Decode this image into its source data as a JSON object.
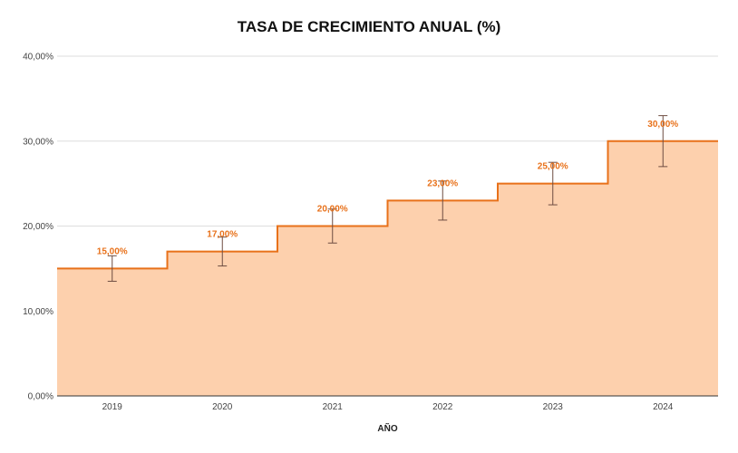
{
  "chart_data": {
    "type": "area",
    "title": "TASA DE CRECIMIENTO ANUAL (%)",
    "xlabel": "AÑO",
    "ylabel": "",
    "categories": [
      "2019",
      "2020",
      "2021",
      "2022",
      "2023",
      "2024"
    ],
    "series": [
      {
        "values": [
          15,
          17,
          20,
          23,
          25,
          30
        ],
        "data_labels": [
          "15,00%",
          "17,00%",
          "20,00%",
          "23,00%",
          "25,00%",
          "30,00%"
        ],
        "error_low": [
          13.5,
          15.3,
          18,
          20.7,
          22.5,
          27
        ],
        "error_high": [
          16.5,
          18.7,
          22,
          25.3,
          27.5,
          33
        ]
      }
    ],
    "step": true,
    "ylim": [
      0,
      40
    ],
    "yticks": [
      0,
      10,
      20,
      30,
      40
    ],
    "ytick_labels": [
      "0,00%",
      "10,00%",
      "20,00%",
      "30,00%",
      "40,00%"
    ],
    "grid": true,
    "colors": {
      "line": "#e8711a",
      "fill": "#fdd0ad",
      "error": "#6d4c41",
      "grid": "#dddddd",
      "label": "#e8711a"
    }
  }
}
